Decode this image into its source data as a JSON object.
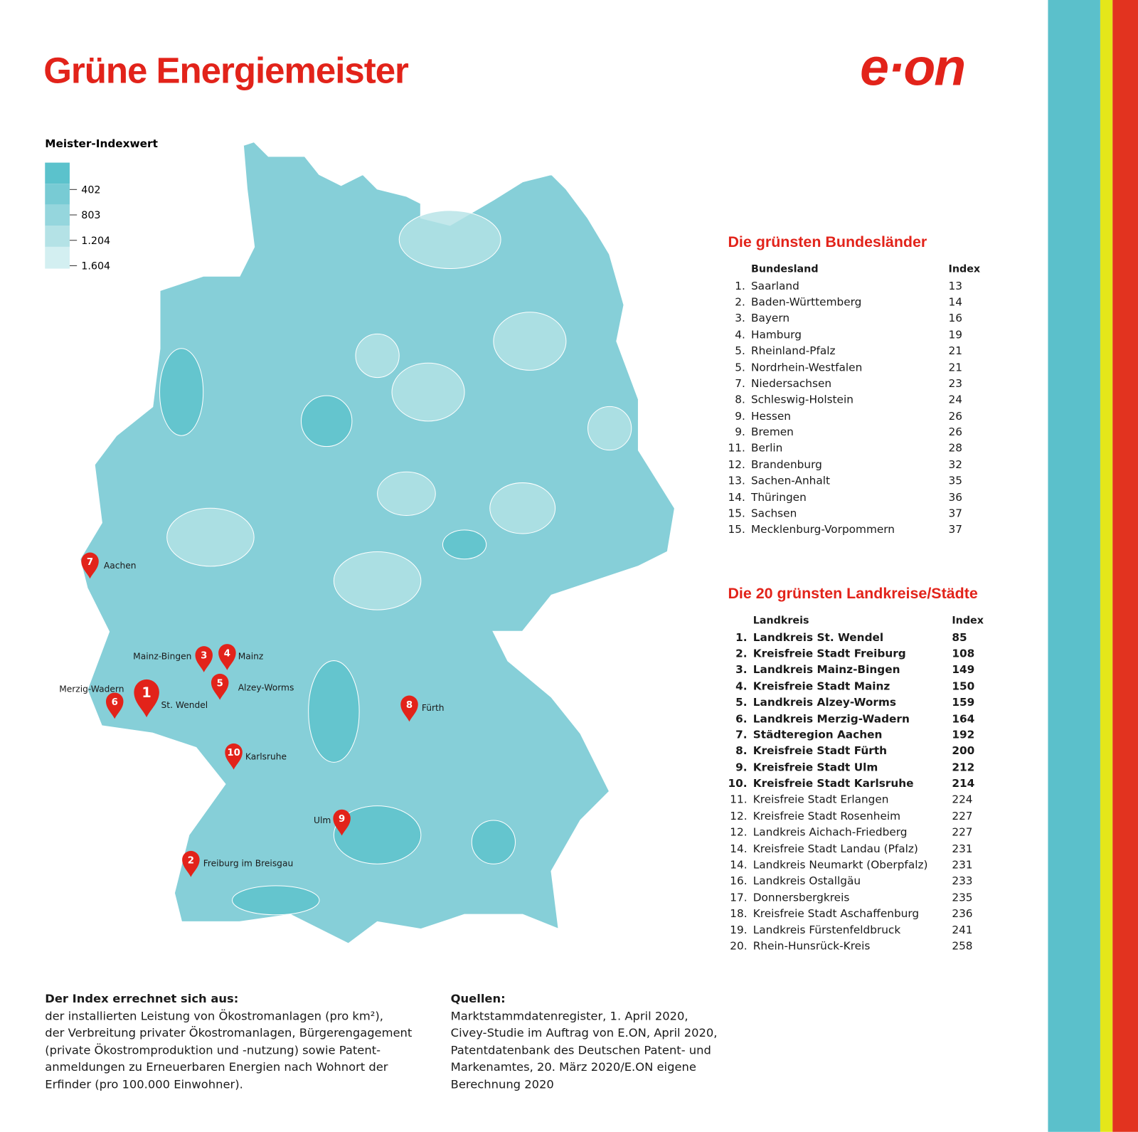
{
  "header": {
    "title": "Grüne Energiemeister",
    "logo": "e·on"
  },
  "legend": {
    "title": "Meister-Indexwert",
    "ticks": [
      "402",
      "803",
      "1.204",
      "1.604"
    ]
  },
  "map": {
    "markers": [
      {
        "number": "1",
        "label": "St. Wendel"
      },
      {
        "number": "2",
        "label": "Freiburg im Breisgau"
      },
      {
        "number": "3",
        "label": "Mainz-Bingen"
      },
      {
        "number": "4",
        "label": "Mainz"
      },
      {
        "number": "5",
        "label": "Alzey-Worms"
      },
      {
        "number": "6",
        "label": "Merzig-Wadern"
      },
      {
        "number": "7",
        "label": "Aachen"
      },
      {
        "number": "8",
        "label": "Fürth"
      },
      {
        "number": "9",
        "label": "Ulm"
      },
      {
        "number": "10",
        "label": "Karlsruhe"
      }
    ]
  },
  "states_table": {
    "title": "Die grünsten Bundesländer",
    "columns": [
      "Bundesland",
      "Index"
    ],
    "rows": [
      [
        "1.",
        "Saarland",
        "13"
      ],
      [
        "2.",
        "Baden-Württemberg",
        "14"
      ],
      [
        "3.",
        "Bayern",
        "16"
      ],
      [
        "4.",
        "Hamburg",
        "19"
      ],
      [
        "5.",
        "Rheinland-Pfalz",
        "21"
      ],
      [
        "5.",
        "Nordrhein-Westfalen",
        "21"
      ],
      [
        "7.",
        "Niedersachsen",
        "23"
      ],
      [
        "8.",
        "Schleswig-Holstein",
        "24"
      ],
      [
        "9.",
        "Hessen",
        "26"
      ],
      [
        "9.",
        "Bremen",
        "26"
      ],
      [
        "11.",
        "Berlin",
        "28"
      ],
      [
        "12.",
        "Brandenburg",
        "32"
      ],
      [
        "13.",
        "Sachen-Anhalt",
        "35"
      ],
      [
        "14.",
        "Thüringen",
        "36"
      ],
      [
        "15.",
        "Sachsen",
        "37"
      ],
      [
        "15.",
        "Mecklenburg-Vorpommern",
        "37"
      ]
    ]
  },
  "districts_table": {
    "title": "Die 20 grünsten Landkreise/Städte",
    "columns": [
      "Landkreis",
      "Index"
    ],
    "rows": [
      [
        "1.",
        "Landkreis St. Wendel",
        "85"
      ],
      [
        "2.",
        "Kreisfreie Stadt Freiburg",
        "108"
      ],
      [
        "3.",
        "Landkreis Mainz-Bingen",
        "149"
      ],
      [
        "4.",
        "Kreisfreie Stadt Mainz",
        "150"
      ],
      [
        "5.",
        "Landkreis Alzey-Worms",
        "159"
      ],
      [
        "6.",
        "Landkreis Merzig-Wadern",
        "164"
      ],
      [
        "7.",
        "Städteregion Aachen",
        "192"
      ],
      [
        "8.",
        "Kreisfreie Stadt Fürth",
        "200"
      ],
      [
        "9.",
        "Kreisfreie Stadt Ulm",
        "212"
      ],
      [
        "10.",
        "Kreisfreie Stadt Karlsruhe",
        "214"
      ],
      [
        "11.",
        "Kreisfreie Stadt Erlangen",
        "224"
      ],
      [
        "12.",
        "Kreisfreie Stadt Rosenheim",
        "227"
      ],
      [
        "12.",
        "Landkreis Aichach-Friedberg",
        "227"
      ],
      [
        "14.",
        "Kreisfreie Stadt Landau (Pfalz)",
        "231"
      ],
      [
        "14.",
        "Landkreis Neumarkt (Oberpfalz)",
        "231"
      ],
      [
        "16.",
        "Landkreis Ostallgäu",
        "233"
      ],
      [
        "17.",
        "Donnersbergkreis",
        "235"
      ],
      [
        "18.",
        "Kreisfreie Stadt Aschaffenburg",
        "236"
      ],
      [
        "19.",
        "Landkreis Fürstenfeldbruck",
        "241"
      ],
      [
        "20.",
        "Rhein-Hunsrück-Kreis",
        "258"
      ]
    ]
  },
  "footer": {
    "method": {
      "title": "Der Index errechnet sich aus:",
      "lines": [
        "der installierten Leistung von Ökostromanlagen (pro km²),",
        "der Verbreitung privater Ökostromanlagen, Bürgerengagement",
        "(private Ökostromproduktion und -nutzung) sowie Patent-",
        "anmeldungen zu Erneuerbaren Energien nach Wohnort der",
        "Erfinder (pro 100.000 Einwohner)."
      ]
    },
    "sources": {
      "title": "Quellen:",
      "lines": [
        "Marktstammdatenregister, 1. April 2020,",
        "Civey-Studie im Auftrag von E.ON, April 2020,",
        "Patentdatenbank des Deutschen Patent- und",
        "Markenamtes, 20. März 2020/E.ON eigene",
        "Berechnung 2020"
      ]
    }
  }
}
